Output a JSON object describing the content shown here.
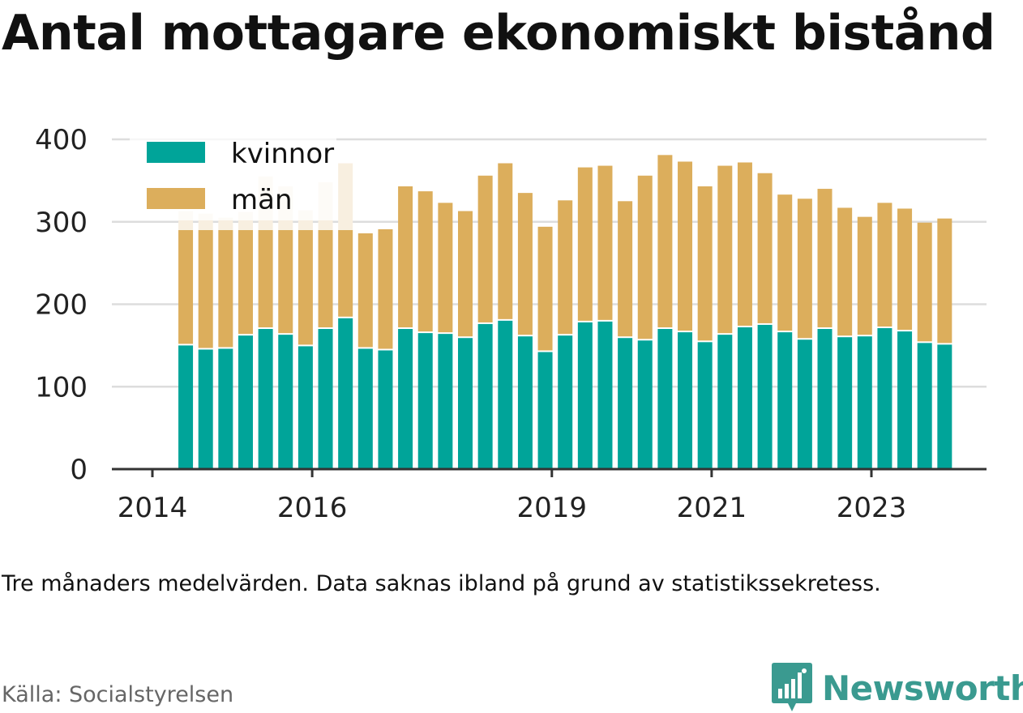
{
  "title": "Antal mottagare ekonomiskt bistånd",
  "note": "Tre månaders medelvärden. Data saknas ibland på grund av statistikssekretess.",
  "source": "Källa: Socialstyrelsen",
  "brand": {
    "name": "Newsworthy",
    "icon": "newsworthy-logo-icon",
    "color": "#3a9a90"
  },
  "chart_data": {
    "type": "bar",
    "stacked": true,
    "ylim": [
      0,
      400
    ],
    "yticks": [
      0,
      100,
      200,
      300,
      400
    ],
    "xticks": [
      {
        "label": "2014",
        "date": "2014-01"
      },
      {
        "label": "2016",
        "date": "2016-01"
      },
      {
        "label": "2019",
        "date": "2019-01"
      },
      {
        "label": "2021",
        "date": "2021-01"
      },
      {
        "label": "2023",
        "date": "2023-01"
      }
    ],
    "grid": true,
    "legend_placement": "top-left",
    "series": [
      {
        "name": "kvinnor",
        "color": "#00a499"
      },
      {
        "name": "män",
        "color": "#dcae5c"
      }
    ],
    "periods": [
      {
        "date": "2014-06",
        "kvinnor": 150,
        "man": 163,
        "masked_man": true
      },
      {
        "date": "2014-09",
        "kvinnor": 145,
        "man": 165,
        "masked_man": true
      },
      {
        "date": "2014-12",
        "kvinnor": 146,
        "man": 159,
        "masked_man": true
      },
      {
        "date": "2015-03",
        "kvinnor": 162,
        "man": 150,
        "masked_man": true
      },
      {
        "date": "2015-06",
        "kvinnor": 170,
        "man": 185,
        "masked_man": true
      },
      {
        "date": "2015-09",
        "kvinnor": 163,
        "man": 180,
        "masked_man": true
      },
      {
        "date": "2015-12",
        "kvinnor": 149,
        "man": 165,
        "masked_man": true
      },
      {
        "date": "2016-03",
        "kvinnor": 170,
        "man": 178,
        "masked_man": true
      },
      {
        "date": "2016-06",
        "kvinnor": 183,
        "man": 188,
        "masked_man": true
      },
      {
        "date": "2016-09",
        "kvinnor": 146,
        "man": 140
      },
      {
        "date": "2016-12",
        "kvinnor": 144,
        "man": 147
      },
      {
        "date": "2017-03",
        "kvinnor": 170,
        "man": 173
      },
      {
        "date": "2017-06",
        "kvinnor": 165,
        "man": 172
      },
      {
        "date": "2017-09",
        "kvinnor": 164,
        "man": 159
      },
      {
        "date": "2017-12",
        "kvinnor": 159,
        "man": 154
      },
      {
        "date": "2018-03",
        "kvinnor": 176,
        "man": 180
      },
      {
        "date": "2018-06",
        "kvinnor": 180,
        "man": 191
      },
      {
        "date": "2018-09",
        "kvinnor": 161,
        "man": 174
      },
      {
        "date": "2018-12",
        "kvinnor": 142,
        "man": 152
      },
      {
        "date": "2019-03",
        "kvinnor": 162,
        "man": 164
      },
      {
        "date": "2019-06",
        "kvinnor": 178,
        "man": 188
      },
      {
        "date": "2019-09",
        "kvinnor": 179,
        "man": 189
      },
      {
        "date": "2019-12",
        "kvinnor": 159,
        "man": 166
      },
      {
        "date": "2020-03",
        "kvinnor": 156,
        "man": 200
      },
      {
        "date": "2020-06",
        "kvinnor": 170,
        "man": 211
      },
      {
        "date": "2020-09",
        "kvinnor": 166,
        "man": 207
      },
      {
        "date": "2020-12",
        "kvinnor": 154,
        "man": 189
      },
      {
        "date": "2021-03",
        "kvinnor": 163,
        "man": 205
      },
      {
        "date": "2021-06",
        "kvinnor": 172,
        "man": 200
      },
      {
        "date": "2021-09",
        "kvinnor": 175,
        "man": 184
      },
      {
        "date": "2021-12",
        "kvinnor": 166,
        "man": 167
      },
      {
        "date": "2022-03",
        "kvinnor": 157,
        "man": 171
      },
      {
        "date": "2022-06",
        "kvinnor": 170,
        "man": 170
      },
      {
        "date": "2022-09",
        "kvinnor": 160,
        "man": 157
      },
      {
        "date": "2022-12",
        "kvinnor": 161,
        "man": 145
      },
      {
        "date": "2023-03",
        "kvinnor": 171,
        "man": 152
      },
      {
        "date": "2023-06",
        "kvinnor": 167,
        "man": 149
      },
      {
        "date": "2023-09",
        "kvinnor": 153,
        "man": 146
      },
      {
        "date": "2023-12",
        "kvinnor": 151,
        "man": 153
      }
    ]
  }
}
